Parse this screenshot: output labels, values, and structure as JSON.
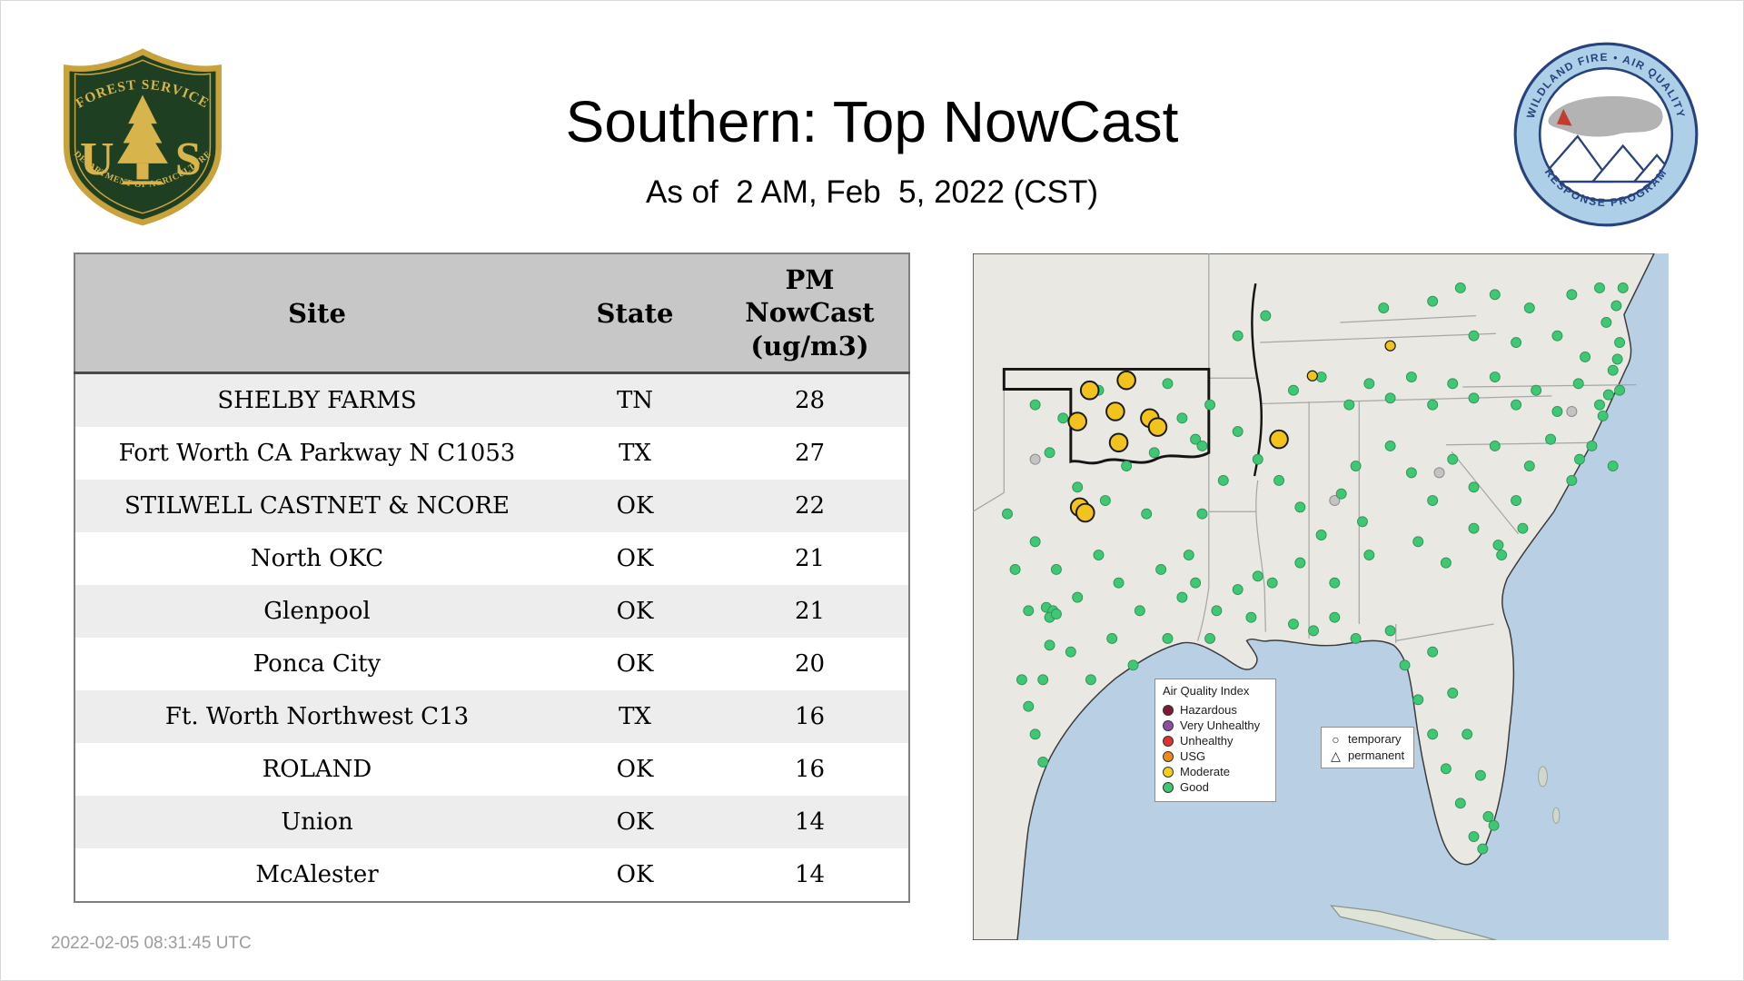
{
  "page": {
    "title": "Southern: Top NowCast",
    "subtitle": "As of  2 AM, Feb  5, 2022 (CST)",
    "timestamp": "2022-02-05 08:31:45 UTC"
  },
  "logos": {
    "usfs": {
      "arc_top": "FOREST SERVICE",
      "letter_left": "U",
      "letter_right": "S",
      "arc_bottom": "DEPARTMENT OF AGRICULTURE"
    },
    "wfaqrp": {
      "arc_top": "WILDLAND FIRE • AIR QUALITY",
      "arc_bottom": "RESPONSE PROGRAM"
    }
  },
  "table": {
    "columns": [
      "Site",
      "State",
      "PM NowCast (ug/m3)"
    ],
    "rows": [
      {
        "site": "SHELBY FARMS",
        "state": "TN",
        "value": 28
      },
      {
        "site": "Fort Worth CA Parkway N C1053",
        "state": "TX",
        "value": 27
      },
      {
        "site": "STILWELL CASTNET & NCORE",
        "state": "OK",
        "value": 22
      },
      {
        "site": "North OKC",
        "state": "OK",
        "value": 21
      },
      {
        "site": "Glenpool",
        "state": "OK",
        "value": 21
      },
      {
        "site": "Ponca City",
        "state": "OK",
        "value": 20
      },
      {
        "site": "Ft. Worth Northwest C13",
        "state": "TX",
        "value": 16
      },
      {
        "site": "ROLAND",
        "state": "OK",
        "value": 16
      },
      {
        "site": "Union",
        "state": "OK",
        "value": 14
      },
      {
        "site": "McAlester",
        "state": "OK",
        "value": 14
      }
    ]
  },
  "map": {
    "legend": {
      "title": "Air Quality Index",
      "items": [
        {
          "label": "Hazardous",
          "color": "#7e1a33"
        },
        {
          "label": "Very Unhealthy",
          "color": "#8f4d9e"
        },
        {
          "label": "Unhealthy",
          "color": "#e03131"
        },
        {
          "label": "USG",
          "color": "#f08a1d"
        },
        {
          "label": "Moderate",
          "color": "#f5cf1b"
        },
        {
          "label": "Good",
          "color": "#3ec873"
        }
      ]
    },
    "marker_legend": {
      "temporary": "temporary",
      "permanent": "permanent"
    },
    "colors": {
      "good": "#3ec873",
      "moderate": "#f2c31c",
      "no_data": "#c3c3c3",
      "water": "#b8cfe4",
      "land": "#e9e8e3"
    },
    "dots": {
      "good": [
        [
          238,
          74
        ],
        [
          263,
          56
        ],
        [
          369,
          49
        ],
        [
          413,
          43
        ],
        [
          438,
          31
        ],
        [
          469,
          37
        ],
        [
          500,
          49
        ],
        [
          538,
          37
        ],
        [
          563,
          31
        ],
        [
          578,
          47
        ],
        [
          450,
          74
        ],
        [
          488,
          80
        ],
        [
          525,
          74
        ],
        [
          550,
          93
        ],
        [
          581,
          80
        ],
        [
          579,
          95
        ],
        [
          569,
          62
        ],
        [
          584,
          31
        ],
        [
          288,
          123
        ],
        [
          313,
          111
        ],
        [
          338,
          136
        ],
        [
          356,
          117
        ],
        [
          375,
          130
        ],
        [
          394,
          111
        ],
        [
          413,
          136
        ],
        [
          431,
          117
        ],
        [
          450,
          130
        ],
        [
          469,
          111
        ],
        [
          488,
          136
        ],
        [
          506,
          123
        ],
        [
          525,
          142
        ],
        [
          544,
          117
        ],
        [
          563,
          136
        ],
        [
          581,
          123
        ],
        [
          566,
          146
        ],
        [
          213,
          136
        ],
        [
          238,
          160
        ],
        [
          256,
          185
        ],
        [
          225,
          204
        ],
        [
          200,
          167
        ],
        [
          275,
          204
        ],
        [
          294,
          228
        ],
        [
          313,
          253
        ],
        [
          331,
          216
        ],
        [
          350,
          241
        ],
        [
          294,
          278
        ],
        [
          325,
          296
        ],
        [
          356,
          271
        ],
        [
          269,
          296
        ],
        [
          344,
          191
        ],
        [
          375,
          173
        ],
        [
          394,
          197
        ],
        [
          413,
          222
        ],
        [
          431,
          185
        ],
        [
          450,
          210
        ],
        [
          469,
          173
        ],
        [
          400,
          259
        ],
        [
          425,
          278
        ],
        [
          450,
          247
        ],
        [
          475,
          271
        ],
        [
          488,
          222
        ],
        [
          500,
          191
        ],
        [
          519,
          167
        ],
        [
          538,
          204
        ],
        [
          556,
          173
        ],
        [
          575,
          191
        ],
        [
          494,
          247
        ],
        [
          472,
          262
        ],
        [
          575,
          105
        ],
        [
          571,
          127
        ],
        [
          545,
          185
        ],
        [
          375,
          339
        ],
        [
          388,
          370
        ],
        [
          400,
          401
        ],
        [
          413,
          432
        ],
        [
          425,
          463
        ],
        [
          438,
          494
        ],
        [
          450,
          524
        ],
        [
          463,
          506
        ],
        [
          456,
          469
        ],
        [
          444,
          432
        ],
        [
          431,
          395
        ],
        [
          413,
          358
        ],
        [
          458,
          535
        ],
        [
          468,
          514
        ],
        [
          31,
          234
        ],
        [
          56,
          259
        ],
        [
          75,
          284
        ],
        [
          50,
          321
        ],
        [
          69,
          352
        ],
        [
          94,
          309
        ],
        [
          113,
          271
        ],
        [
          131,
          296
        ],
        [
          150,
          321
        ],
        [
          169,
          284
        ],
        [
          188,
          309
        ],
        [
          63,
          383
        ],
        [
          88,
          358
        ],
        [
          106,
          383
        ],
        [
          125,
          346
        ],
        [
          144,
          370
        ],
        [
          38,
          284
        ],
        [
          175,
          346
        ],
        [
          194,
          271
        ],
        [
          206,
          234
        ],
        [
          156,
          234
        ],
        [
          119,
          222
        ],
        [
          94,
          210
        ],
        [
          66,
          318
        ],
        [
          72,
          321
        ],
        [
          69,
          327
        ],
        [
          75,
          324
        ],
        [
          44,
          383
        ],
        [
          50,
          407
        ],
        [
          56,
          432
        ],
        [
          63,
          457
        ],
        [
          200,
          296
        ],
        [
          219,
          321
        ],
        [
          238,
          302
        ],
        [
          250,
          327
        ],
        [
          213,
          346
        ],
        [
          256,
          290
        ],
        [
          288,
          333
        ],
        [
          306,
          339
        ],
        [
          325,
          327
        ],
        [
          344,
          346
        ],
        [
          69,
          179
        ],
        [
          81,
          148
        ],
        [
          175,
          117
        ],
        [
          188,
          148
        ],
        [
          206,
          173
        ],
        [
          163,
          179
        ],
        [
          138,
          191
        ],
        [
          113,
          123
        ],
        [
          56,
          136
        ]
      ],
      "moderate": [
        [
          105,
          123
        ],
        [
          138,
          114
        ],
        [
          128,
          142
        ],
        [
          94,
          151
        ],
        [
          159,
          148
        ],
        [
          166,
          156
        ],
        [
          131,
          170
        ],
        [
          275,
          167
        ],
        [
          96,
          228
        ],
        [
          101,
          233
        ]
      ],
      "moderate_small": [
        [
          375,
          83
        ],
        [
          305,
          110
        ]
      ],
      "gray": [
        [
          419,
          197
        ],
        [
          538,
          142
        ],
        [
          325,
          222
        ],
        [
          56,
          185
        ]
      ]
    }
  }
}
